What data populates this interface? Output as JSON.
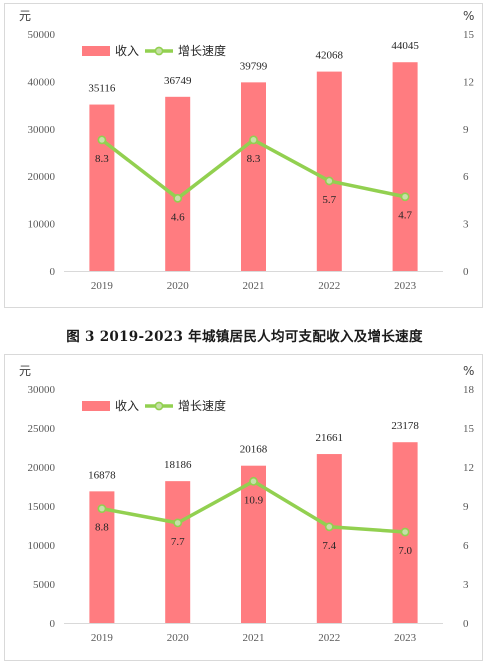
{
  "figure_caption": "图 3    2019-2023 年城镇居民人均可支配收入及增长速度",
  "colors": {
    "bar": "#ff7c80",
    "line": "#92d050",
    "marker_face": "#c6e0a8",
    "axis": "#d9d9d9"
  },
  "chart_data": [
    {
      "type": "bar",
      "left_unit": "元",
      "right_unit": "%",
      "legend": {
        "bar_label": "收入",
        "line_label": "增长速度",
        "position": "top-left"
      },
      "categories": [
        "2019",
        "2020",
        "2021",
        "2022",
        "2023"
      ],
      "series": [
        {
          "name": "收入",
          "type": "bar",
          "axis": "left",
          "values": [
            35116,
            36749,
            39799,
            42068,
            44045
          ]
        },
        {
          "name": "增长速度",
          "type": "line",
          "axis": "right",
          "values": [
            8.3,
            4.6,
            8.3,
            5.7,
            4.7
          ]
        }
      ],
      "bar_labels": [
        "35116",
        "36749",
        "39799",
        "42068",
        "44045"
      ],
      "line_labels": [
        "8.3",
        "4.6",
        "8.3",
        "5.7",
        "4.7"
      ],
      "ylim": [
        0,
        50000
      ],
      "yticks": [
        "0",
        "10000",
        "20000",
        "30000",
        "40000",
        "50000"
      ],
      "y2lim": [
        0,
        15
      ],
      "y2ticks": [
        "0",
        "3",
        "6",
        "9",
        "12",
        "15"
      ],
      "grid": false
    },
    {
      "type": "bar",
      "left_unit": "元",
      "right_unit": "%",
      "legend": {
        "bar_label": "收入",
        "line_label": "增长速度",
        "position": "top-left"
      },
      "categories": [
        "2019",
        "2020",
        "2021",
        "2022",
        "2023"
      ],
      "series": [
        {
          "name": "收入",
          "type": "bar",
          "axis": "left",
          "values": [
            16878,
            18186,
            20168,
            21661,
            23178
          ]
        },
        {
          "name": "增长速度",
          "type": "line",
          "axis": "right",
          "values": [
            8.8,
            7.7,
            10.9,
            7.4,
            7.0
          ]
        }
      ],
      "bar_labels": [
        "16878",
        "18186",
        "20168",
        "21661",
        "23178"
      ],
      "line_labels": [
        "8.8",
        "7.7",
        "10.9",
        "7.4",
        "7.0"
      ],
      "ylim": [
        0,
        30000
      ],
      "yticks": [
        "0",
        "5000",
        "10000",
        "15000",
        "20000",
        "25000",
        "30000"
      ],
      "y2lim": [
        0,
        18
      ],
      "y2ticks": [
        "0",
        "3",
        "6",
        "9",
        "12",
        "15",
        "18"
      ],
      "grid": false
    }
  ]
}
